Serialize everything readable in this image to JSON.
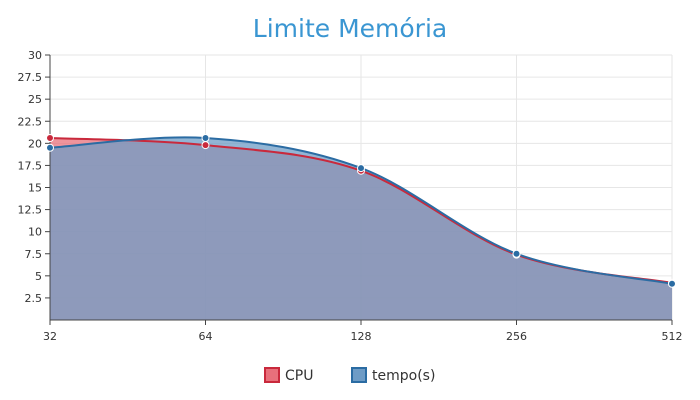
{
  "chart_data": {
    "type": "area",
    "title": "Limite Memória",
    "xlabel": "",
    "ylabel": "",
    "x": [
      32,
      64,
      128,
      256,
      512
    ],
    "x_tick_labels": [
      "32",
      "64",
      "128",
      "256",
      "512"
    ],
    "x_scale": "log2",
    "ylim": [
      0,
      30
    ],
    "y_ticks": [
      2.5,
      5,
      7.5,
      10,
      12.5,
      15,
      17.5,
      20,
      22.5,
      25,
      27.5,
      30
    ],
    "y_tick_labels": [
      "2.5",
      "5",
      "7.5",
      "10",
      "12.5",
      "15",
      "17.5",
      "20",
      "22.5",
      "25",
      "27.5",
      "30"
    ],
    "grid": true,
    "legend_position": "bottom",
    "series": [
      {
        "name": "CPU",
        "values": [
          20.6,
          19.8,
          16.9,
          7.4,
          4.2
        ],
        "line_color": "#c9293c",
        "fill_color": "#e8707b"
      },
      {
        "name": "tempo(s)",
        "values": [
          19.5,
          20.6,
          17.2,
          7.5,
          4.1
        ],
        "line_color": "#2b6ca3",
        "fill_color": "#6e9cc6"
      }
    ],
    "title_color": "#3a96d2"
  }
}
